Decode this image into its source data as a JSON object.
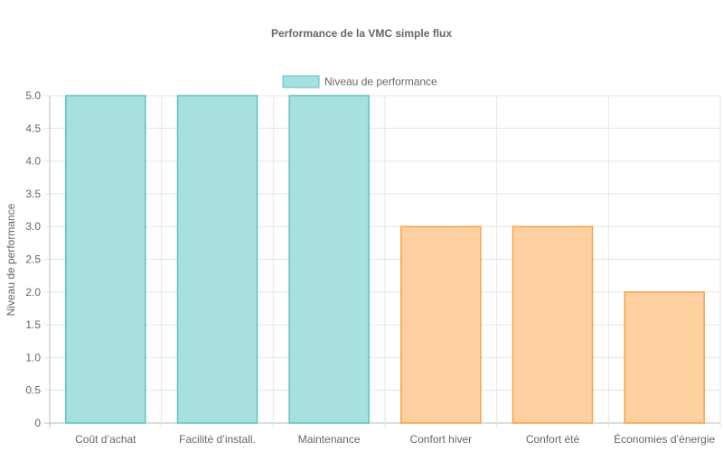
{
  "chart_data": {
    "type": "bar",
    "title": "Performance de la VMC simple flux",
    "categories": [
      "Coût d’achat",
      "Facilité d’install.",
      "Maintenance",
      "Confort hiver",
      "Confort été",
      "Économies d’énergie"
    ],
    "series": [
      {
        "name": "Niveau de performance",
        "values": [
          5,
          5,
          5,
          3,
          3,
          2
        ]
      }
    ],
    "xlabel": "",
    "ylabel": "Niveau de performance",
    "ylim": [
      0,
      5
    ],
    "yticks": [
      "0",
      "0.5",
      "1.0",
      "1.5",
      "2.0",
      "2.5",
      "3.0",
      "3.5",
      "4.0",
      "4.5",
      "5.0"
    ],
    "grid": true,
    "legend_position": "top",
    "bar_colors": {
      "high": {
        "fill": "#a8e0e0",
        "stroke": "#5cc2c2"
      },
      "low": {
        "fill": "#ffd1a1",
        "stroke": "#f5a04a"
      }
    },
    "legend_color": {
      "fill": "#a8e0e0",
      "stroke": "#5cc2c2"
    }
  }
}
